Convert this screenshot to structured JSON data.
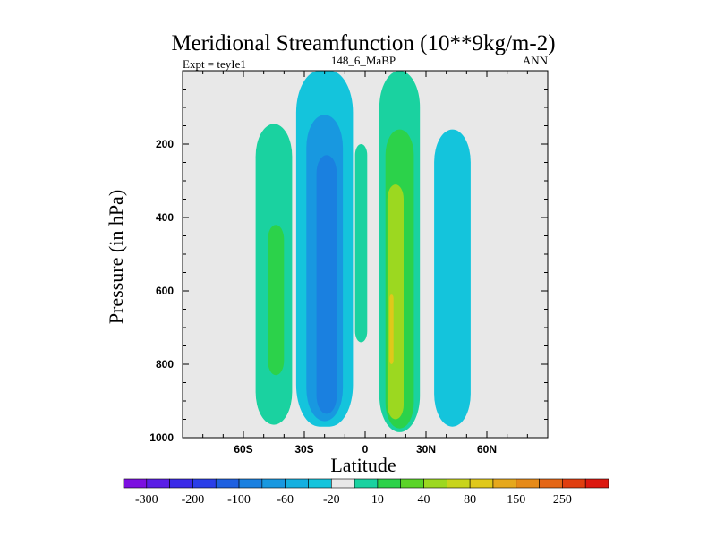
{
  "chart_data": {
    "type": "contour",
    "title": "Meridional Streamfunction (10**9kg/m-2)",
    "subtitle_left": "Expt = teyIe1",
    "subtitle_center": "148_6_MaBP",
    "subtitle_right": "ANN",
    "xlabel": "Latitude",
    "ylabel": "Pressure (in hPa)",
    "xlim": [
      -90,
      90
    ],
    "ylim": [
      0,
      1000
    ],
    "y_inverted": true,
    "background_color": "#e8e8e8",
    "xticks": [
      {
        "value": -60,
        "label": "60S"
      },
      {
        "value": -30,
        "label": "30S"
      },
      {
        "value": 0,
        "label": "0"
      },
      {
        "value": 30,
        "label": "30N"
      },
      {
        "value": 60,
        "label": "60N"
      }
    ],
    "yticks": [
      {
        "value": 200,
        "label": "200"
      },
      {
        "value": 400,
        "label": "400"
      },
      {
        "value": 600,
        "label": "600"
      },
      {
        "value": 800,
        "label": "800"
      },
      {
        "value": 1000,
        "label": "1000"
      }
    ],
    "colorbar": {
      "colors": [
        "#7c10e0",
        "#5a1ee6",
        "#3a2ae8",
        "#2a3ee8",
        "#1e60e0",
        "#1a80e0",
        "#1898e0",
        "#14b0e0",
        "#14c4dc",
        "#e8e8e8",
        "#1ad2a0",
        "#2cd24a",
        "#5ad428",
        "#9cd820",
        "#c8d41c",
        "#e0c81a",
        "#e6a81c",
        "#e68a18",
        "#e46616",
        "#e03e10",
        "#dc1810"
      ],
      "tick_labels": [
        "-300",
        "-200",
        "-100",
        "-60",
        "-20",
        "10",
        "40",
        "80",
        "150",
        "250"
      ]
    },
    "regions": [
      {
        "name": "sh-outer-positive",
        "level": 10,
        "lat_center": -45,
        "half_width": 9,
        "p_top": 145,
        "p_bottom": 965
      },
      {
        "name": "sh-outer-positive-core",
        "level": 40,
        "lat_center": -44,
        "half_width": 4,
        "p_top": 420,
        "p_bottom": 830
      },
      {
        "name": "sh-negative-outer",
        "level": -20,
        "lat_center": -20,
        "half_width": 14,
        "p_top": 0,
        "p_bottom": 970
      },
      {
        "name": "sh-negative-mid",
        "level": -60,
        "lat_center": -20,
        "half_width": 9,
        "p_top": 120,
        "p_bottom": 955
      },
      {
        "name": "sh-negative-core",
        "level": -100,
        "lat_center": -19,
        "half_width": 5,
        "p_top": 230,
        "p_bottom": 935
      },
      {
        "name": "eq-positive-band",
        "level": 10,
        "lat_center": -2,
        "half_width": 3,
        "p_top": 200,
        "p_bottom": 740
      },
      {
        "name": "nh-positive-outer",
        "level": 10,
        "lat_center": 17,
        "half_width": 10,
        "p_top": 0,
        "p_bottom": 985
      },
      {
        "name": "nh-positive-mid",
        "level": 40,
        "lat_center": 17,
        "half_width": 7,
        "p_top": 160,
        "p_bottom": 975
      },
      {
        "name": "nh-positive-core",
        "level": 80,
        "lat_center": 15,
        "half_width": 4,
        "p_top": 310,
        "p_bottom": 950
      },
      {
        "name": "nh-positive-peak",
        "level": 150,
        "lat_center": 13,
        "half_width": 1,
        "p_top": 610,
        "p_bottom": 800
      },
      {
        "name": "nh-negative",
        "level": -20,
        "lat_center": 43,
        "half_width": 9,
        "p_top": 160,
        "p_bottom": 970
      }
    ]
  }
}
